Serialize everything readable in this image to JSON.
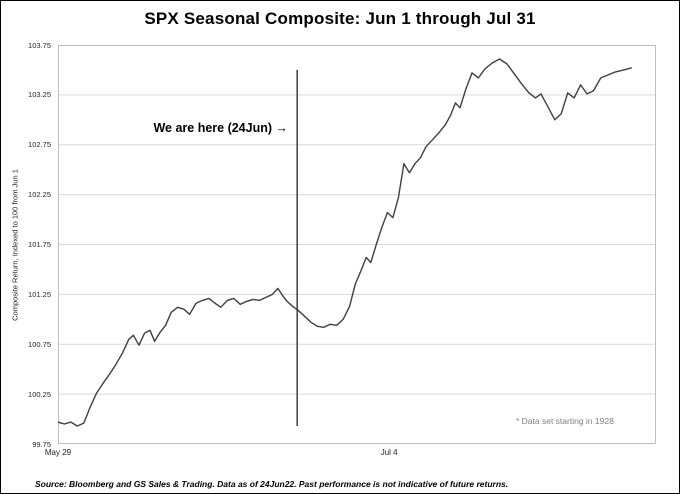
{
  "title": "SPX Seasonal Composite: Jun 1 through Jul 31",
  "annotation": "We are here (24Jun) →",
  "footnote": "* Data set starting in 1928",
  "source": "Source: Bloomberg  and GS Sales  &  Trading.  Data as of 24Jun22.  Past performance  is not indicative of future returns.",
  "colors": {
    "line": "#3f3f3f",
    "marker": "#404040",
    "grid": "#d9d9d9",
    "axis": "#bfbfbf",
    "footnote": "#7f7f7f",
    "background": "#ffffff"
  },
  "chart_data": {
    "type": "line",
    "title": "SPX Seasonal Composite: Jun 1 through Jul 31",
    "xlabel": "",
    "ylabel": "Composite Return,  Indexed to 100 from Jun 1",
    "x_unit": "days since May 29",
    "xlim": [
      0,
      65
    ],
    "ylim": [
      99.75,
      103.75
    ],
    "grid": "horizontal",
    "legend": false,
    "yticks": [
      99.75,
      100.25,
      100.75,
      101.25,
      101.75,
      102.25,
      102.75,
      103.25,
      103.75
    ],
    "ytick_labels": [
      "99.75",
      "100.25",
      "100.75",
      "101.25",
      "101.75",
      "102.25",
      "102.75",
      "103.25",
      "103.75"
    ],
    "xticks": [
      {
        "label": "May 29",
        "x": 0
      },
      {
        "label": "Jul 4",
        "x": 36
      }
    ],
    "marker": {
      "label": "We are here (24Jun)",
      "date": "24Jun",
      "x": 26,
      "y_top": 103.5,
      "y_bottom": 99.93
    },
    "series": [
      {
        "name": "SPX seasonal composite (data set starting in 1928)",
        "points": [
          [
            0.0,
            99.97
          ],
          [
            0.7,
            99.95
          ],
          [
            1.4,
            99.97
          ],
          [
            2.1,
            99.93
          ],
          [
            2.8,
            99.96
          ],
          [
            3.5,
            100.12
          ],
          [
            4.2,
            100.26
          ],
          [
            4.9,
            100.36
          ],
          [
            5.6,
            100.45
          ],
          [
            6.3,
            100.55
          ],
          [
            7.0,
            100.66
          ],
          [
            7.7,
            100.8
          ],
          [
            8.2,
            100.84
          ],
          [
            8.8,
            100.74
          ],
          [
            9.4,
            100.86
          ],
          [
            10.0,
            100.89
          ],
          [
            10.5,
            100.78
          ],
          [
            11.1,
            100.87
          ],
          [
            11.7,
            100.94
          ],
          [
            12.3,
            101.07
          ],
          [
            13.0,
            101.12
          ],
          [
            13.7,
            101.1
          ],
          [
            14.3,
            101.05
          ],
          [
            15.0,
            101.16
          ],
          [
            15.7,
            101.19
          ],
          [
            16.4,
            101.21
          ],
          [
            17.1,
            101.16
          ],
          [
            17.7,
            101.12
          ],
          [
            18.4,
            101.19
          ],
          [
            19.1,
            101.21
          ],
          [
            19.8,
            101.15
          ],
          [
            20.5,
            101.18
          ],
          [
            21.2,
            101.2
          ],
          [
            21.9,
            101.19
          ],
          [
            22.6,
            101.22
          ],
          [
            23.3,
            101.25
          ],
          [
            23.9,
            101.31
          ],
          [
            24.4,
            101.24
          ],
          [
            24.9,
            101.18
          ],
          [
            25.5,
            101.13
          ],
          [
            26.1,
            101.09
          ],
          [
            26.8,
            101.03
          ],
          [
            27.5,
            100.97
          ],
          [
            28.2,
            100.93
          ],
          [
            28.9,
            100.92
          ],
          [
            29.6,
            100.95
          ],
          [
            30.3,
            100.94
          ],
          [
            31.0,
            101.0
          ],
          [
            31.7,
            101.13
          ],
          [
            32.3,
            101.35
          ],
          [
            32.9,
            101.48
          ],
          [
            33.5,
            101.62
          ],
          [
            34.0,
            101.57
          ],
          [
            34.6,
            101.75
          ],
          [
            35.2,
            101.92
          ],
          [
            35.8,
            102.07
          ],
          [
            36.4,
            102.02
          ],
          [
            37.0,
            102.22
          ],
          [
            37.6,
            102.56
          ],
          [
            38.2,
            102.47
          ],
          [
            38.8,
            102.56
          ],
          [
            39.4,
            102.62
          ],
          [
            40.0,
            102.73
          ],
          [
            40.7,
            102.8
          ],
          [
            41.4,
            102.87
          ],
          [
            42.1,
            102.95
          ],
          [
            42.7,
            103.05
          ],
          [
            43.2,
            103.17
          ],
          [
            43.7,
            103.12
          ],
          [
            44.3,
            103.3
          ],
          [
            45.0,
            103.47
          ],
          [
            45.7,
            103.42
          ],
          [
            46.4,
            103.51
          ],
          [
            47.2,
            103.57
          ],
          [
            48.0,
            103.61
          ],
          [
            48.8,
            103.56
          ],
          [
            49.6,
            103.46
          ],
          [
            50.4,
            103.36
          ],
          [
            51.2,
            103.27
          ],
          [
            51.9,
            103.22
          ],
          [
            52.5,
            103.26
          ],
          [
            53.2,
            103.14
          ],
          [
            54.0,
            103.0
          ],
          [
            54.7,
            103.06
          ],
          [
            55.4,
            103.27
          ],
          [
            56.1,
            103.22
          ],
          [
            56.8,
            103.35
          ],
          [
            57.5,
            103.26
          ],
          [
            58.2,
            103.29
          ],
          [
            59.0,
            103.42
          ],
          [
            59.8,
            103.45
          ],
          [
            60.6,
            103.48
          ],
          [
            61.5,
            103.5
          ],
          [
            62.3,
            103.52
          ]
        ]
      }
    ]
  }
}
